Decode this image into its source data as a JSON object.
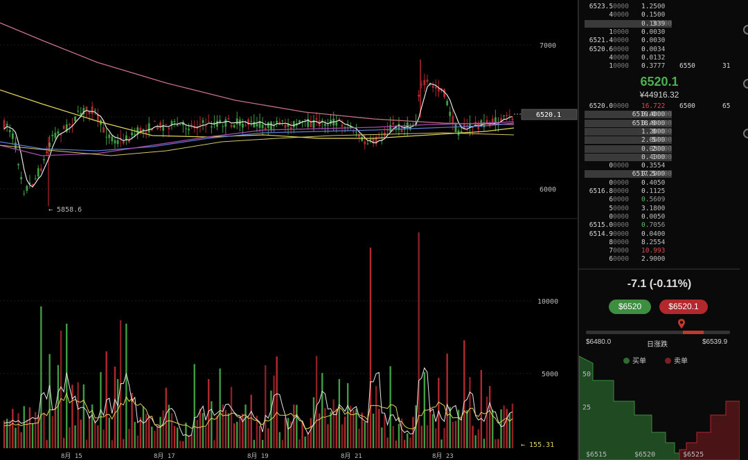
{
  "chart": {
    "price_axis": [
      "7000",
      "6000"
    ],
    "volume_axis": [
      "10000",
      "5000"
    ],
    "current_price_tag": "6520.1",
    "low_marker": "← 5858.6",
    "volume_marker": "← 155.31",
    "date_labels": [
      "8月 15",
      "8月 17",
      "8月 19",
      "8月 21",
      "8月 23"
    ]
  },
  "orderbook": {
    "asks": [
      {
        "p": "6523.5",
        "pd": "0000",
        "a": "1.",
        "ad": "2500"
      },
      {
        "p": "4",
        "pd": "0000",
        "a": "0.",
        "ad": "1500"
      },
      {
        "p": "3",
        "pd": "0000",
        "a": "0.",
        "ad": "1339",
        "hl": true
      },
      {
        "p": "1",
        "pd": "0000",
        "a": "0.",
        "ad": "0030"
      },
      {
        "p": "6521.4",
        "pd": "0000",
        "a": "0.",
        "ad": "0030"
      },
      {
        "p": "6520.6",
        "pd": "0000",
        "a": "0.",
        "ad": "0034"
      },
      {
        "p": "4",
        "pd": "0000",
        "a": "0.",
        "ad": "0132"
      },
      {
        "p": "1",
        "pd": "0000",
        "a": "0.",
        "ad": "3777",
        "x1": "6550",
        "x2": "31"
      }
    ],
    "last_price": "6520.1",
    "cny_price": "¥44916.32",
    "bids": [
      {
        "p": "6520.0",
        "pd": "0000",
        "a": "16.",
        "ad": "722",
        "x1": "6500",
        "x2": "65",
        "red": true
      },
      {
        "p": "6519.0",
        "pd": "0000",
        "a": "0.",
        "ad": "4000",
        "hl": true
      },
      {
        "p": "6518.9",
        "pd": "0000",
        "a": "0.",
        "ad": "4000",
        "hl": true
      },
      {
        "p": "8",
        "pd": "0000",
        "a": "1.",
        "ad": "2000",
        "hl": true
      },
      {
        "p": "5",
        "pd": "0000",
        "a": "2.",
        "ad": "0600",
        "hl": true
      },
      {
        "p": "2",
        "pd": "0000",
        "a": "0.",
        "ad": "0800",
        "hl": true
      },
      {
        "p": "1",
        "pd": "0000",
        "a": "0.",
        "ad": "4000",
        "hl": true
      },
      {
        "p": "0",
        "pd": "0000",
        "a": "0.",
        "ad": "3554"
      },
      {
        "p": "6517.5",
        "pd": "0000",
        "a": "0.",
        "ad": "2000",
        "hl": true
      },
      {
        "p": "0",
        "pd": "0000",
        "a": "0.",
        "ad": "4050"
      },
      {
        "p": "6516.8",
        "pd": "0000",
        "a": "0.",
        "ad": "1125"
      },
      {
        "p": "6",
        "pd": "0000",
        "a": "0.",
        "ad": "5609",
        "green": true
      },
      {
        "p": "5",
        "pd": "0000",
        "a": "3.",
        "ad": "1800"
      },
      {
        "p": "0",
        "pd": "0000",
        "a": "0.",
        "ad": "0050"
      },
      {
        "p": "6515.0",
        "pd": "0000",
        "a": "0.",
        "ad": "7056",
        "green": true
      },
      {
        "p": "6514.9",
        "pd": "0000",
        "a": "0.",
        "ad": "0400"
      },
      {
        "p": "8",
        "pd": "0000",
        "a": "8.",
        "ad": "2554"
      },
      {
        "p": "7",
        "pd": "0000",
        "a": "10.",
        "ad": "993",
        "red": true
      },
      {
        "p": "6",
        "pd": "0000",
        "a": "2.",
        "ad": "9000"
      }
    ]
  },
  "stats": {
    "change": "-7.1  (-0.11%)",
    "buy_button": "$6520",
    "sell_button": "$6520.1",
    "day_low": "$6480.0",
    "day_label": "日涨跌",
    "day_high": "$6539.9",
    "legend_buy": "买单",
    "legend_sell": "卖单",
    "colors": {
      "up": "#4caf50",
      "down": "#c0392b"
    }
  },
  "depth": {
    "y_labels": [
      "50",
      "25"
    ],
    "x_labels": [
      "$6515",
      "$6520",
      "$6525"
    ]
  }
}
